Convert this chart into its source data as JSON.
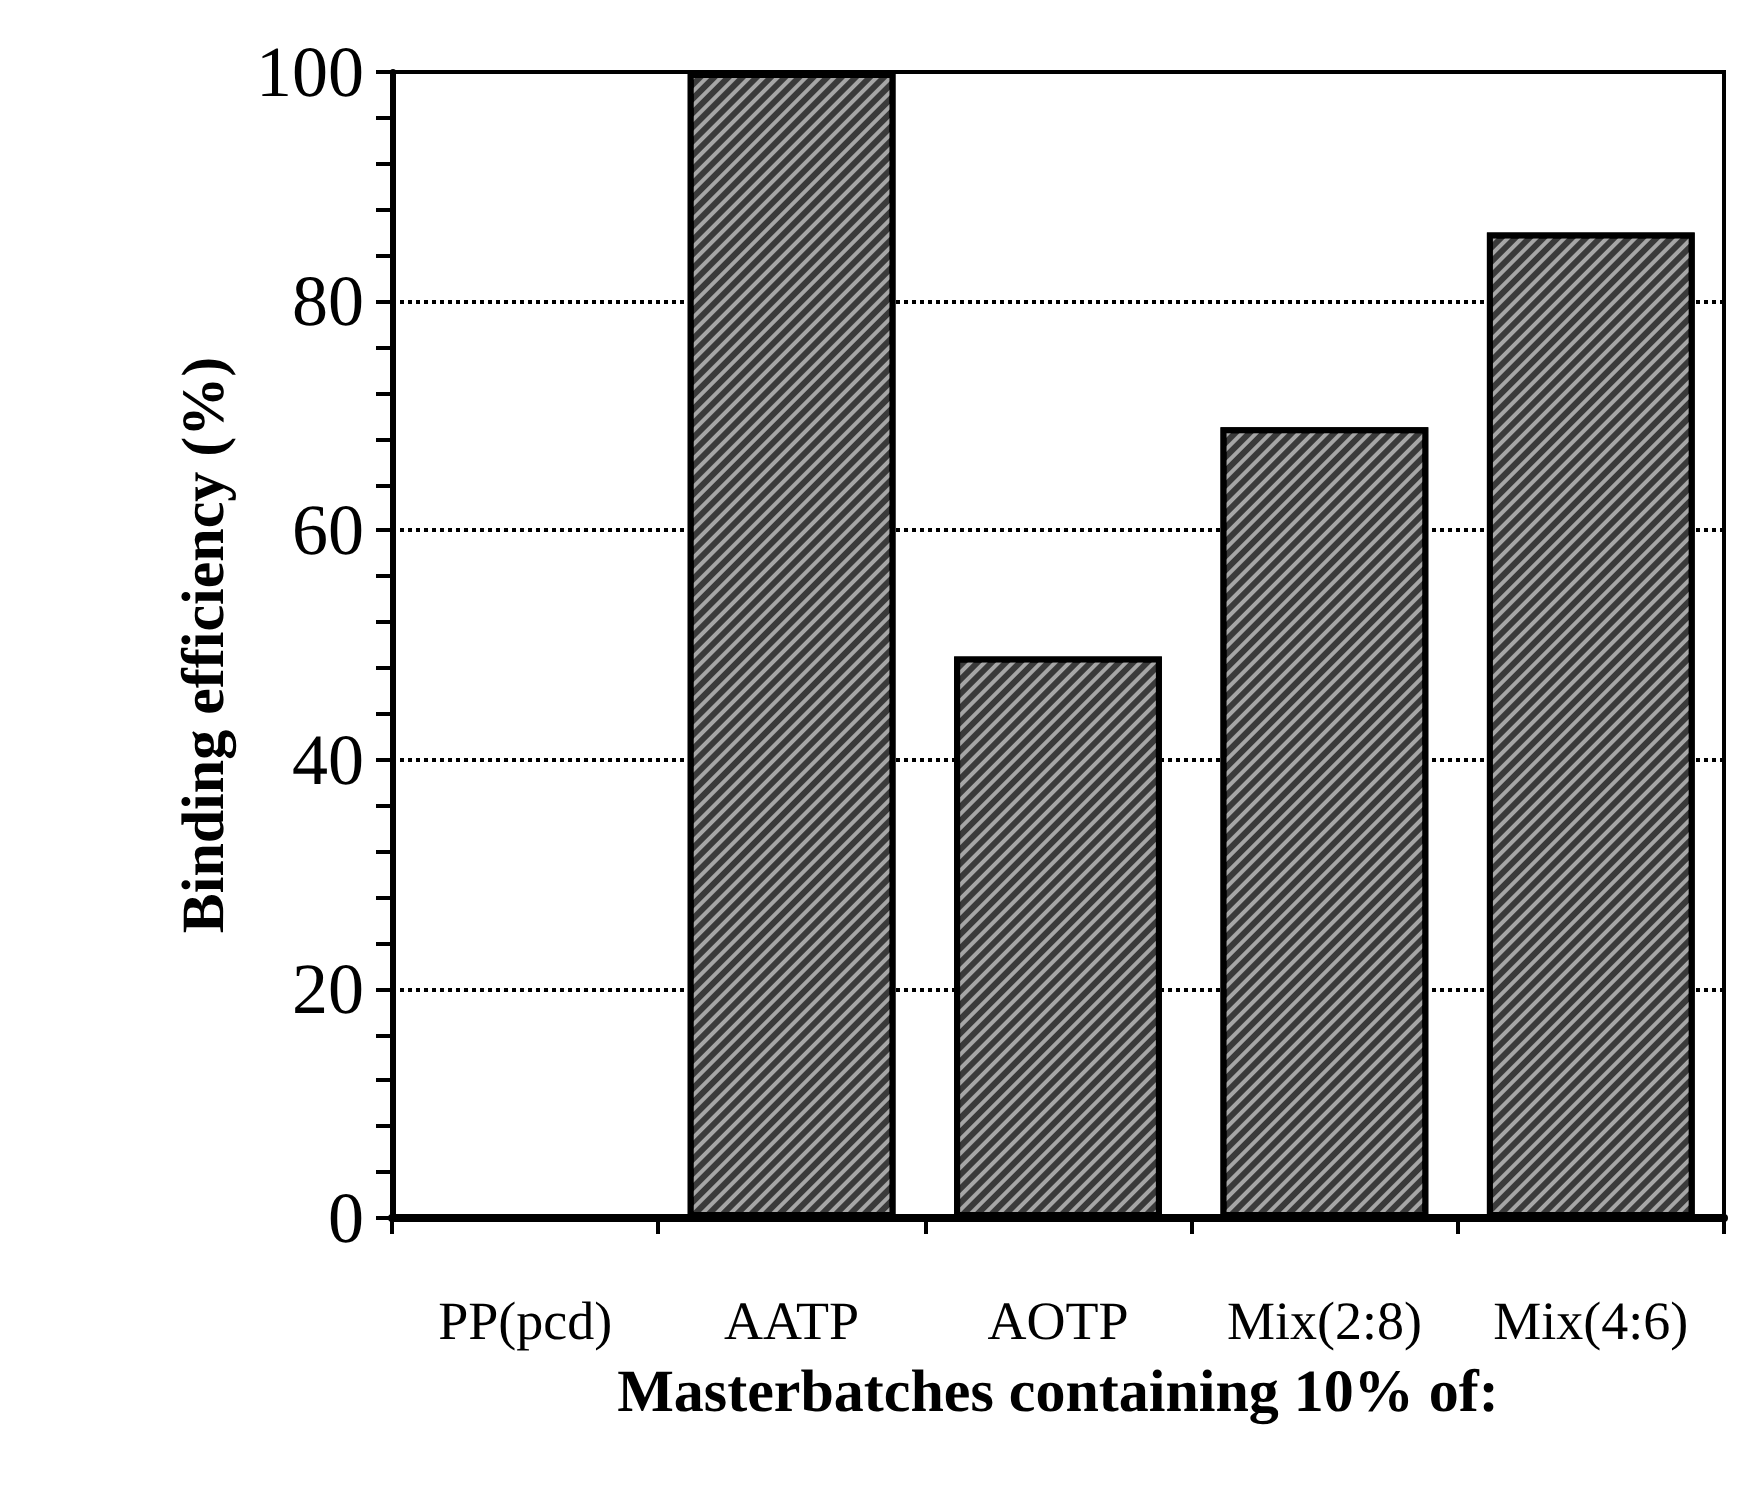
{
  "chart_data": {
    "type": "bar",
    "xlabel": "Masterbatches containing 10% of:",
    "ylabel": "Binding efficiency (%)",
    "categories": [
      "PP(pcd)",
      "AATP",
      "AOTP",
      "Mix(2:8)",
      "Mix(4:6)"
    ],
    "values": [
      0,
      100,
      49,
      69,
      86
    ],
    "color": "#3a3a3a",
    "ylim": [
      0,
      100
    ],
    "yticks": [
      0,
      20,
      40,
      60,
      80,
      100
    ],
    "grid": "y"
  }
}
